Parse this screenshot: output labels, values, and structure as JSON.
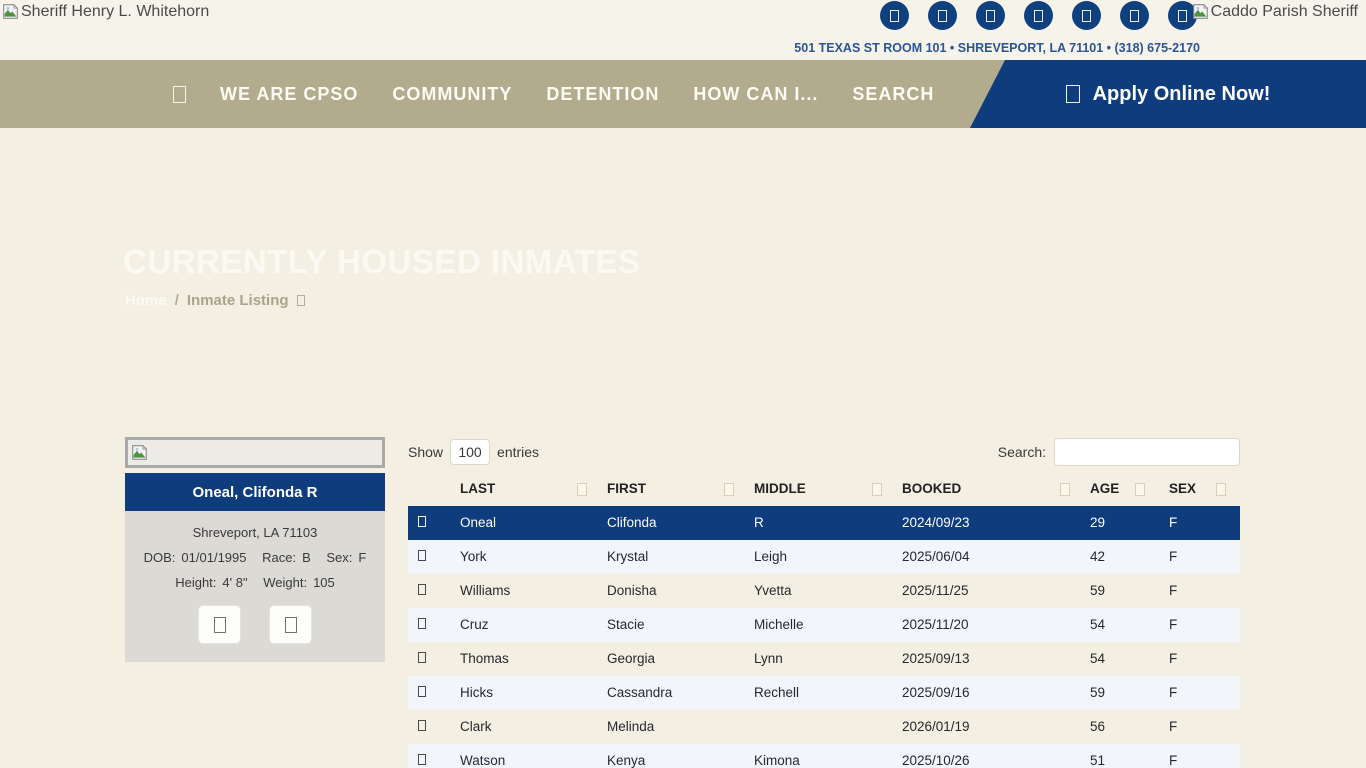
{
  "header": {
    "logo_left_alt": "Sheriff Henry L. Whitehorn",
    "logo_right_alt": "Caddo Parish Sheriff",
    "address": "501 TEXAS ST ROOM 101 • SHREVEPORT, LA 71101 • (318) 675-2170",
    "social_icons": [
      "social-icon-1",
      "social-icon-2",
      "social-icon-3",
      "social-icon-4",
      "social-icon-5",
      "social-icon-6",
      "social-icon-7"
    ]
  },
  "nav": {
    "items": [
      "WE ARE CPSO",
      "COMMUNITY",
      "DETENTION",
      "HOW CAN I...",
      "SEARCH"
    ],
    "apply_label": "Apply Online Now!"
  },
  "hero": {
    "title": "CURRENTLY HOUSED INMATES",
    "breadcrumb": {
      "home": "Home",
      "separator": "/",
      "current": "Inmate Listing"
    }
  },
  "inmate_card": {
    "name": "Oneal, Clifonda R",
    "location": "Shreveport, LA 71103",
    "dob_label": "DOB:",
    "dob": "01/01/1995",
    "race_label": "Race:",
    "race": "B",
    "sex_label": "Sex:",
    "sex": "F",
    "height_label": "Height:",
    "height": "4' 8\"",
    "weight_label": "Weight:",
    "weight": "105"
  },
  "table": {
    "show_label": "Show",
    "page_size": "100",
    "entries_label": "entries",
    "search_label": "Search:",
    "search_value": "",
    "columns": [
      "LAST",
      "FIRST",
      "MIDDLE",
      "BOOKED",
      "AGE",
      "SEX"
    ],
    "rows": [
      {
        "last": "Oneal",
        "first": "Clifonda",
        "middle": "R",
        "booked": "2024/09/23",
        "age": "29",
        "sex": "F",
        "selected": true
      },
      {
        "last": "York",
        "first": "Krystal",
        "middle": "Leigh",
        "booked": "2025/06/04",
        "age": "42",
        "sex": "F"
      },
      {
        "last": "Williams",
        "first": "Donisha",
        "middle": "Yvetta",
        "booked": "2025/11/25",
        "age": "59",
        "sex": "F"
      },
      {
        "last": "Cruz",
        "first": "Stacie",
        "middle": "Michelle",
        "booked": "2025/11/20",
        "age": "54",
        "sex": "F"
      },
      {
        "last": "Thomas",
        "first": "Georgia",
        "middle": "Lynn",
        "booked": "2025/09/13",
        "age": "54",
        "sex": "F"
      },
      {
        "last": "Hicks",
        "first": "Cassandra",
        "middle": "Rechell",
        "booked": "2025/09/16",
        "age": "59",
        "sex": "F"
      },
      {
        "last": "Clark",
        "first": "Melinda",
        "middle": "",
        "booked": "2026/01/19",
        "age": "56",
        "sex": "F"
      },
      {
        "last": "Watson",
        "first": "Kenya",
        "middle": "Kimona",
        "booked": "2025/10/26",
        "age": "51",
        "sex": "F"
      }
    ]
  },
  "colors": {
    "navy": "#0e3c7d",
    "nav_tan": "#b3ab8e",
    "page_cream": "#f3efe3",
    "row_stripe": "#f2f6fb",
    "address_blue": "#2b5597"
  }
}
